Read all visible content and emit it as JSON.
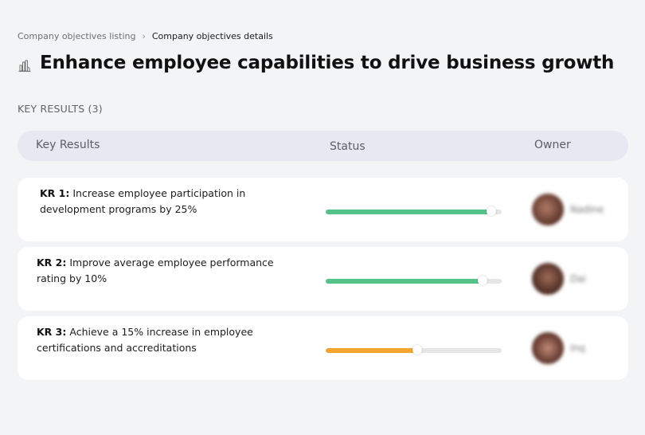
{
  "breadcrumb": {
    "parent": "Company objectives listing",
    "separator": "›",
    "current": "Company objectives details"
  },
  "page": {
    "title_icon": "bar-chart-icon",
    "title": "Enhance employee capabilities to drive business growth"
  },
  "key_results_section": {
    "label": "KEY RESULTS (3)",
    "columns": {
      "key_results": "Key Results",
      "status": "Status",
      "owner": "Owner"
    },
    "rows": [
      {
        "id": "KR 1:",
        "text": "Increase employee participation in development programs by 25%",
        "progress_pct": 94,
        "status_color": "#55c28a",
        "owner_name": "Nadine",
        "avatar_color": "#8a5a4a"
      },
      {
        "id": "KR 2:",
        "text": "Improve average employee performance rating by 10%",
        "progress_pct": 89,
        "status_color": "#55c28a",
        "owner_name": "Dai",
        "avatar_color": "#7a4a3c"
      },
      {
        "id": "KR 3:",
        "text": "Achieve a 15% increase in employee certifications and accreditations",
        "progress_pct": 52,
        "status_color": "#f5a42f",
        "owner_name": "Inq",
        "avatar_color": "#9a6250"
      }
    ]
  }
}
